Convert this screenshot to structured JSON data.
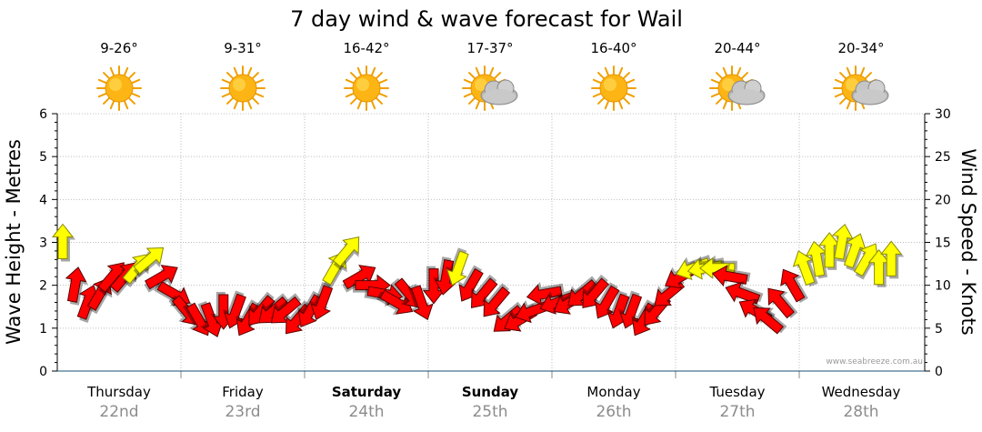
{
  "chart_data": {
    "type": "line",
    "title": "7 day wind & wave forecast for Wail",
    "ylabel_left": "Wave Height - Metres",
    "ylabel_right": "Wind Speed - Knots",
    "ylim_left": [
      0,
      6
    ],
    "ylim_right": [
      0,
      30
    ],
    "yticks_left": [
      "0",
      "1",
      "2",
      "3",
      "4",
      "5",
      "6"
    ],
    "yticks_right": [
      "0",
      "5",
      "10",
      "15",
      "20",
      "25",
      "30"
    ],
    "credit": "www.seabreeze.com.au",
    "days": [
      {
        "day": "Thursday",
        "date": "22nd",
        "temp": "9-26°",
        "weather": "sunny",
        "bold": false
      },
      {
        "day": "Friday",
        "date": "23rd",
        "temp": "9-31°",
        "weather": "sunny",
        "bold": false
      },
      {
        "day": "Saturday",
        "date": "24th",
        "temp": "16-42°",
        "weather": "sunny",
        "bold": true
      },
      {
        "day": "Sunday",
        "date": "25th",
        "temp": "17-37°",
        "weather": "partly-cloudy",
        "bold": true
      },
      {
        "day": "Monday",
        "date": "26th",
        "temp": "16-40°",
        "weather": "sunny",
        "bold": false
      },
      {
        "day": "Tuesday",
        "date": "27th",
        "temp": "20-44°",
        "weather": "partly-cloudy",
        "bold": false
      },
      {
        "day": "Wednesday",
        "date": "28th",
        "temp": "20-34°",
        "weather": "partly-cloudy",
        "bold": false
      }
    ],
    "wind_series": {
      "name": "Wind speed (knots)",
      "time_days": [
        0.0,
        0.1,
        0.2,
        0.3,
        0.4,
        0.5,
        0.6,
        0.7,
        0.8,
        0.9,
        1.0,
        1.1,
        1.2,
        1.3,
        1.4,
        1.5,
        1.6,
        1.7,
        1.8,
        1.9,
        2.0,
        2.1,
        2.2,
        2.3,
        2.4,
        2.5,
        2.6,
        2.7,
        2.8,
        2.9,
        3.0,
        3.1,
        3.2,
        3.3,
        3.4,
        3.5,
        3.6,
        3.7,
        3.8,
        3.9,
        4.0,
        4.1,
        4.2,
        4.3,
        4.4,
        4.5,
        4.6,
        4.7,
        4.8,
        4.9,
        5.0,
        5.1,
        5.2,
        5.3,
        5.4,
        5.5,
        5.6,
        5.7,
        5.8,
        5.9,
        6.0,
        6.1,
        6.2,
        6.3,
        6.4,
        6.5,
        6.6,
        6.7
      ],
      "knots": [
        15,
        10,
        8,
        9,
        11,
        11,
        12,
        13,
        11,
        9,
        7,
        6,
        6,
        7,
        7,
        6,
        7,
        7,
        7,
        6,
        7,
        8,
        12,
        14,
        11,
        10,
        9,
        8,
        9,
        8,
        10,
        11,
        12,
        10,
        9,
        8,
        6,
        6,
        7,
        9,
        8,
        8,
        9,
        9,
        8,
        7,
        7,
        6,
        7,
        9,
        11,
        12,
        12,
        12,
        11,
        9,
        7,
        6,
        8,
        10,
        12,
        13,
        14,
        15,
        14,
        13,
        12,
        13
      ],
      "direction_deg": [
        0,
        10,
        20,
        30,
        40,
        40,
        40,
        50,
        60,
        120,
        140,
        150,
        160,
        180,
        200,
        210,
        220,
        230,
        230,
        220,
        210,
        200,
        30,
        40,
        60,
        90,
        100,
        120,
        140,
        160,
        180,
        190,
        200,
        210,
        220,
        220,
        230,
        240,
        250,
        260,
        250,
        240,
        230,
        220,
        210,
        200,
        200,
        210,
        220,
        230,
        240,
        250,
        260,
        270,
        280,
        290,
        300,
        310,
        320,
        330,
        340,
        350,
        0,
        10,
        20,
        30,
        0,
        0
      ]
    }
  }
}
